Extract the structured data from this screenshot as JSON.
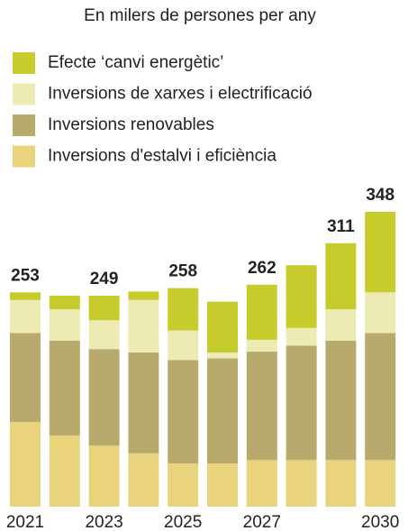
{
  "chart_data": {
    "type": "stacked_bar",
    "subtitle": "En milers de persones per any",
    "categories": [
      "2021",
      null,
      "2023",
      null,
      "2025",
      null,
      "2027",
      null,
      null,
      "2030"
    ],
    "series": [
      {
        "name": "Inversions d'estalvi i eficiència",
        "color": "#e9d47d",
        "values": [
          100,
          84,
          72,
          63,
          51,
          51,
          55,
          55,
          55,
          55
        ]
      },
      {
        "name": "Inversions renovables",
        "color": "#b8a96c",
        "values": [
          105,
          112,
          114,
          119,
          122,
          124,
          128,
          135,
          141,
          150
        ]
      },
      {
        "name": "Inversions de xarxes i electrificació",
        "color": "#ebebb3",
        "values": [
          39,
          37,
          34,
          62,
          35,
          7,
          14,
          21,
          37,
          48
        ]
      },
      {
        "name": "Efecte ‘canvi energètic’",
        "color": "#c6cc2b",
        "values": [
          9,
          16,
          29,
          10,
          50,
          60,
          65,
          74,
          78,
          95
        ]
      }
    ],
    "totals": [
      253,
      null,
      249,
      null,
      258,
      null,
      262,
      null,
      311,
      348
    ]
  }
}
